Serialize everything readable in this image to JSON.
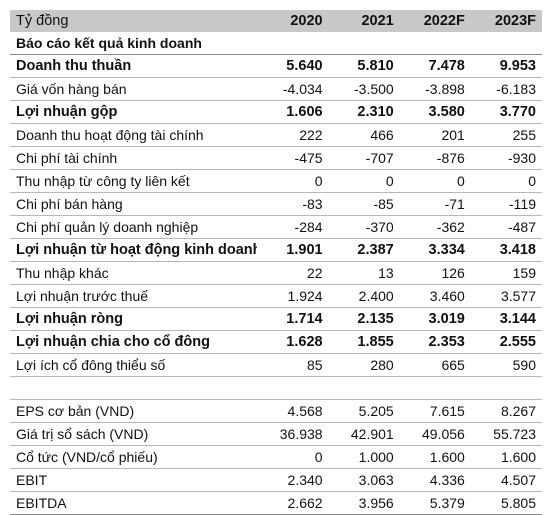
{
  "header": {
    "unit": "Tỷ đồng",
    "years": [
      "2020",
      "2021",
      "2022F",
      "2023F"
    ]
  },
  "section_title": "Báo cáo kết quả kinh doanh",
  "rows": [
    {
      "label": "Doanh thu thuần",
      "bold": true,
      "values": [
        "5.640",
        "5.810",
        "7.478",
        "9.953"
      ]
    },
    {
      "label": "Giá vốn hàng bán",
      "bold": false,
      "values": [
        "-4.034",
        "-3.500",
        "-3.898",
        "-6.183"
      ]
    },
    {
      "label": "Lợi nhuận gộp",
      "bold": true,
      "values": [
        "1.606",
        "2.310",
        "3.580",
        "3.770"
      ]
    },
    {
      "label": "Doanh thu hoạt động tài chính",
      "bold": false,
      "values": [
        "222",
        "466",
        "201",
        "255"
      ]
    },
    {
      "label": "Chi phí tài chính",
      "bold": false,
      "values": [
        "-475",
        "-707",
        "-876",
        "-930"
      ]
    },
    {
      "label": "Thu nhập từ công ty liên kết",
      "bold": false,
      "values": [
        "0",
        "0",
        "0",
        "0"
      ]
    },
    {
      "label": "Chi phí bán hàng",
      "bold": false,
      "values": [
        "-83",
        "-85",
        "-71",
        "-119"
      ]
    },
    {
      "label": "Chi phí quản lý doanh nghiệp",
      "bold": false,
      "values": [
        "-284",
        "-370",
        "-362",
        "-487"
      ]
    },
    {
      "label": "Lợi nhuận từ hoạt động kinh doanh",
      "bold": true,
      "values": [
        "1.901",
        "2.387",
        "3.334",
        "3.418"
      ]
    },
    {
      "label": "Thu nhập khác",
      "bold": false,
      "values": [
        "22",
        "13",
        "126",
        "159"
      ]
    },
    {
      "label": "Lợi nhuận trước thuế",
      "bold": false,
      "values": [
        "1.924",
        "2.400",
        "3.460",
        "3.577"
      ]
    },
    {
      "label": "Lợi nhuận ròng",
      "bold": true,
      "values": [
        "1.714",
        "2.135",
        "3.019",
        "3.144"
      ]
    },
    {
      "label": "Lợi nhuận chia cho cổ đông",
      "bold": true,
      "values": [
        "1.628",
        "1.855",
        "2.353",
        "2.555"
      ]
    },
    {
      "label": "Lợi ích cổ đông thiểu số",
      "bold": false,
      "values": [
        "85",
        "280",
        "665",
        "590"
      ]
    }
  ],
  "rows2": [
    {
      "label": "EPS cơ bản (VND)",
      "values": [
        "4.568",
        "5.205",
        "7.615",
        "8.267"
      ]
    },
    {
      "label": "Giá trị sổ sách (VND)",
      "values": [
        "36.938",
        "42.901",
        "49.056",
        "55.723"
      ]
    },
    {
      "label": "Cổ tức (VND/cổ phiếu)",
      "values": [
        "0",
        "1.000",
        "1.600",
        "1.600"
      ]
    },
    {
      "label": "EBIT",
      "values": [
        "2.340",
        "3.063",
        "4.336",
        "4.507"
      ]
    },
    {
      "label": "EBITDA",
      "values": [
        "2.662",
        "3.956",
        "5.379",
        "5.805"
      ]
    }
  ]
}
